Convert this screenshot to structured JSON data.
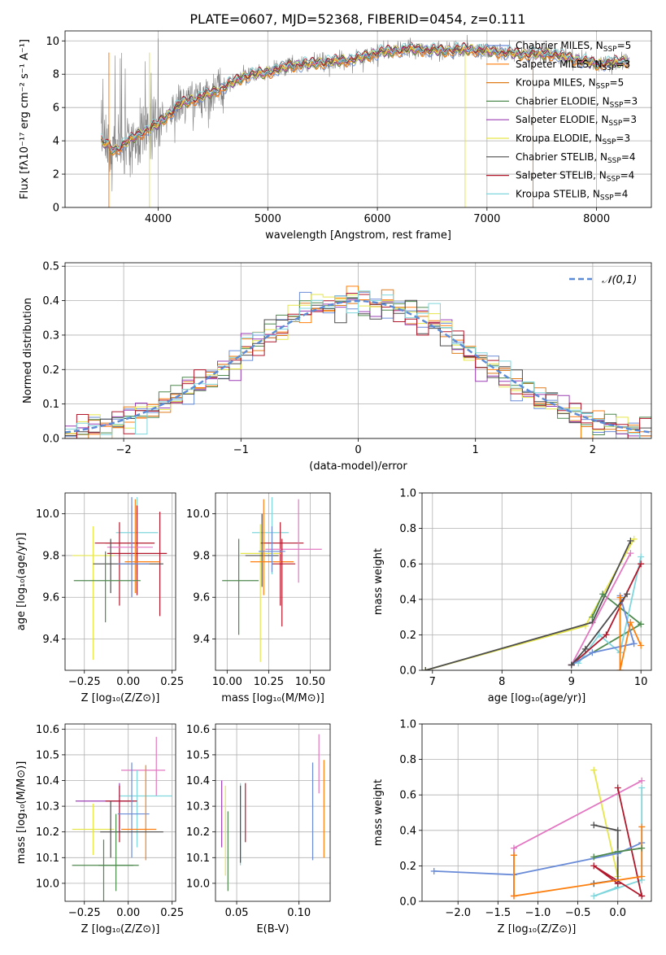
{
  "title": "PLATE=0607, MJD=52368, FIBERID=0454, z=0.111",
  "colors": {
    "chabrier_miles": "#6a8cd8",
    "salpeter_miles": "#ff7f0e",
    "kroupa_miles": "#e07b1a",
    "chabrier_elodie": "#4f8a4f",
    "salpeter_elodie": "#9b3fb5",
    "kroupa_elodie": "#e6e64a",
    "chabrier_stelib": "#4d4d4d",
    "salpeter_stelib": "#b2182b",
    "kroupa_stelib": "#7fd6dc",
    "pink": "#e377c2",
    "data": "#808080"
  },
  "chart_data": [
    {
      "id": "spectrum",
      "type": "line",
      "xlabel": "wavelength [Angstrom, rest frame]",
      "ylabel": "Flux [fλ10⁻¹⁷ erg cm⁻² s⁻¹ A⁻¹]",
      "xlim": [
        3150,
        8500
      ],
      "ylim": [
        0,
        10.6
      ],
      "xticks": [
        4000,
        5000,
        6000,
        7000,
        8000
      ],
      "yticks": [
        0,
        2,
        4,
        6,
        8,
        10
      ],
      "legend": [
        {
          "name": "Chabrier MILES, N",
          "sub": "SSP",
          "tail": "=5",
          "color": "#6a8cd8"
        },
        {
          "name": "Salpeter MILES, N",
          "sub": "SSP",
          "tail": "=3",
          "color": "#ff7f0e"
        },
        {
          "name": "Kroupa MILES, N",
          "sub": "SSP",
          "tail": "=5",
          "color": "#e07b1a"
        },
        {
          "name": "Chabrier ELODIE, N",
          "sub": "SSP",
          "tail": "=3",
          "color": "#4f8a4f"
        },
        {
          "name": "Salpeter ELODIE, N",
          "sub": "SSP",
          "tail": "=3",
          "color": "#9b3fb5"
        },
        {
          "name": "Kroupa ELODIE, N",
          "sub": "SSP",
          "tail": "=3",
          "color": "#e6e64a"
        },
        {
          "name": "Chabrier STELIB, N",
          "sub": "SSP",
          "tail": "=4",
          "color": "#4d4d4d"
        },
        {
          "name": "Salpeter STELIB, N",
          "sub": "SSP",
          "tail": "=4",
          "color": "#b2182b"
        },
        {
          "name": "Kroupa STELIB, N",
          "sub": "SSP",
          "tail": "=4",
          "color": "#7fd6dc"
        }
      ],
      "data_anchors": {
        "x": [
          3480,
          3600,
          3800,
          4000,
          4200,
          4500,
          4800,
          5000,
          5200,
          5500,
          5800,
          6000,
          6300,
          6600,
          6800,
          7000,
          7300,
          7600,
          8000,
          8300
        ],
        "y": [
          4.0,
          3.4,
          4.3,
          5.0,
          6.2,
          6.9,
          7.9,
          8.1,
          8.5,
          8.7,
          8.9,
          9.3,
          9.5,
          9.4,
          9.5,
          9.4,
          9.2,
          9.2,
          8.6,
          8.8
        ]
      }
    },
    {
      "id": "residuals",
      "type": "line",
      "xlabel": "(data-model)/error",
      "ylabel": "Normed distribution",
      "xlim": [
        -2.5,
        2.5
      ],
      "ylim": [
        0,
        0.51
      ],
      "xticks": [
        -2,
        -1,
        0,
        1,
        2
      ],
      "yticks": [
        0.0,
        0.1,
        0.2,
        0.3,
        0.4,
        0.5
      ],
      "legend": "𝒩(0,1)",
      "bin_width": 0.1
    },
    {
      "id": "age-vs-Z",
      "type": "scatter",
      "xlabel": "Z [log₁₀(Z/Z⊙)]",
      "ylabel": "age  [log₁₀(age/yr)]",
      "xlim": [
        -0.36,
        0.27
      ],
      "ylim": [
        9.25,
        10.1
      ],
      "xticks": [
        -0.25,
        0.0,
        0.25
      ],
      "yticks": [
        9.4,
        9.6,
        9.8,
        10.0
      ],
      "errorbars": [
        {
          "x": 0.05,
          "y": 9.91,
          "xerr": [
            0.12,
            0.12
          ],
          "yerr": [
            0.2,
            0.17
          ],
          "color": "#7fd6dc"
        },
        {
          "x": 0.05,
          "y": 9.86,
          "xerr": [
            0.18,
            0.1
          ],
          "yerr": [
            0.25,
            0.18
          ],
          "color": "#b2182b"
        },
        {
          "x": -0.05,
          "y": 9.86,
          "xerr": [
            0.14,
            0.2
          ],
          "yerr": [
            0.3,
            0.1
          ],
          "color": "#b2182b"
        },
        {
          "x": 0.02,
          "y": 9.84,
          "xerr": [
            0.14,
            0.12
          ],
          "yerr": [
            0.24,
            0.2
          ],
          "color": "#e377c2"
        },
        {
          "x": -0.2,
          "y": 9.8,
          "xerr": [
            0.12,
            0.12
          ],
          "yerr": [
            0.5,
            0.14
          ],
          "color": "#e6e64a"
        },
        {
          "x": 0.18,
          "y": 9.81,
          "xerr": [
            0.3,
            0.04
          ],
          "yerr": [
            0.3,
            0.2
          ],
          "color": "#b2182b"
        },
        {
          "x": 0.04,
          "y": 9.77,
          "xerr": [
            0.06,
            0.14
          ],
          "yerr": [
            0.15,
            0.3
          ],
          "color": "#ff7f0e"
        },
        {
          "x": -0.1,
          "y": 9.76,
          "xerr": [
            0.1,
            0.3
          ],
          "yerr": [
            0.14,
            0.12
          ],
          "color": "#4d4d4d"
        },
        {
          "x": -0.13,
          "y": 9.68,
          "xerr": [
            0.18,
            0.2
          ],
          "yerr": [
            0.2,
            0.14
          ],
          "color": "#4f8a4f"
        },
        {
          "x": 0.02,
          "y": 9.76,
          "xerr": [
            0.08,
            0.1
          ],
          "yerr": [
            0.16,
            0.32
          ],
          "color": "#6a8cd8"
        }
      ]
    },
    {
      "id": "age-vs-mass",
      "type": "scatter",
      "xlabel": "mass [log₁₀(M/M⊙)]",
      "ylabel": "",
      "xlim": [
        9.93,
        10.62
      ],
      "ylim": [
        9.25,
        10.1
      ],
      "xticks": [
        10.0,
        10.25,
        10.5
      ],
      "yticks": [
        9.4,
        9.6,
        9.8,
        10.0
      ],
      "errorbars": [
        {
          "x": 10.27,
          "y": 9.91,
          "xerr": [
            0.12,
            0.1
          ],
          "yerr": [
            0.2,
            0.17
          ],
          "color": "#7fd6dc"
        },
        {
          "x": 10.32,
          "y": 9.86,
          "xerr": [
            0.12,
            0.14
          ],
          "yerr": [
            0.3,
            0.1
          ],
          "color": "#b2182b"
        },
        {
          "x": 10.43,
          "y": 9.83,
          "xerr": [
            0.2,
            0.14
          ],
          "yerr": [
            0.16,
            0.24
          ],
          "color": "#e377c2"
        },
        {
          "x": 10.2,
          "y": 9.81,
          "xerr": [
            0.12,
            0.12
          ],
          "yerr": [
            0.52,
            0.14
          ],
          "color": "#e6e64a"
        },
        {
          "x": 10.21,
          "y": 9.8,
          "xerr": [
            0.1,
            0.1
          ],
          "yerr": [
            0.15,
            0.2
          ],
          "color": "#4d4d4d"
        },
        {
          "x": 10.22,
          "y": 9.77,
          "xerr": [
            0.08,
            0.18
          ],
          "yerr": [
            0.16,
            0.3
          ],
          "color": "#ff7f0e"
        },
        {
          "x": 10.33,
          "y": 9.76,
          "xerr": [
            0.06,
            0.08
          ],
          "yerr": [
            0.3,
            0.12
          ],
          "color": "#b2182b"
        },
        {
          "x": 10.07,
          "y": 9.68,
          "xerr": [
            0.1,
            0.12
          ],
          "yerr": [
            0.26,
            0.2
          ],
          "color": "#4f8a4f"
        },
        {
          "x": 10.27,
          "y": 9.82,
          "xerr": [
            0.08,
            0.08
          ],
          "yerr": [
            0.1,
            0.12
          ],
          "color": "#6a8cd8"
        }
      ]
    },
    {
      "id": "weight-vs-age",
      "type": "line",
      "xlabel": "age  [log₁₀(age/yr)]",
      "ylabel": "mass weight",
      "xlim": [
        6.85,
        10.15
      ],
      "ylim": [
        0,
        1.0
      ],
      "xticks": [
        7,
        8,
        9,
        10
      ],
      "yticks": [
        0.0,
        0.2,
        0.4,
        0.6,
        0.8,
        1.0
      ],
      "series": [
        {
          "color": "#e6e64a",
          "points": [
            [
              9.9,
              0.74
            ],
            [
              9.2,
              0.25
            ],
            [
              6.9,
              0.0
            ]
          ]
        },
        {
          "color": "#4d4d4d",
          "points": [
            [
              9.85,
              0.73
            ],
            [
              9.3,
              0.27
            ],
            [
              6.9,
              0.0
            ]
          ]
        },
        {
          "color": "#4f8a4f",
          "points": [
            [
              9.3,
              0.3
            ],
            [
              9.45,
              0.43
            ],
            [
              10.0,
              0.26
            ],
            [
              9.0,
              0.03
            ]
          ]
        },
        {
          "color": "#7fd6dc",
          "points": [
            [
              10.0,
              0.64
            ],
            [
              9.7,
              0.1
            ],
            [
              9.4,
              0.2
            ],
            [
              9.1,
              0.04
            ]
          ]
        },
        {
          "color": "#b2182b",
          "points": [
            [
              10.0,
              0.6
            ],
            [
              9.5,
              0.2
            ],
            [
              9.0,
              0.03
            ]
          ]
        },
        {
          "color": "#6a8cd8",
          "points": [
            [
              9.7,
              0.42
            ],
            [
              9.9,
              0.15
            ],
            [
              9.3,
              0.1
            ],
            [
              9.0,
              0.03
            ]
          ]
        },
        {
          "color": "#ff7f0e",
          "points": [
            [
              9.7,
              0.41
            ],
            [
              9.7,
              0.0
            ],
            [
              9.85,
              0.27
            ],
            [
              10.0,
              0.14
            ]
          ]
        },
        {
          "color": "#e377c2",
          "points": [
            [
              9.85,
              0.66
            ],
            [
              9.0,
              0.03
            ]
          ]
        },
        {
          "color": "#4d4d4d",
          "points": [
            [
              9.8,
              0.43
            ],
            [
              9.2,
              0.12
            ],
            [
              9.0,
              0.03
            ]
          ]
        }
      ]
    },
    {
      "id": "mass-vs-Z",
      "type": "scatter",
      "xlabel": "Z [log₁₀(Z/Z⊙)]",
      "ylabel": "mass [log₁₀(M/M⊙)]",
      "xlim": [
        -0.36,
        0.27
      ],
      "ylim": [
        9.93,
        10.62
      ],
      "xticks": [
        -0.25,
        0.0,
        0.25
      ],
      "yticks": [
        10.0,
        10.1,
        10.2,
        10.3,
        10.4,
        10.5,
        10.6
      ],
      "errorbars": [
        {
          "x": 0.16,
          "y": 10.44,
          "xerr": [
            0.2,
            0.05
          ],
          "yerr": [
            0.1,
            0.13
          ],
          "color": "#e377c2"
        },
        {
          "x": 0.05,
          "y": 10.34,
          "xerr": [
            0.1,
            0.2
          ],
          "yerr": [
            0.2,
            0.1
          ],
          "color": "#7fd6dc"
        },
        {
          "x": -0.05,
          "y": 10.32,
          "xerr": [
            0.25,
            0.08
          ],
          "yerr": [
            0.12,
            0.07
          ],
          "color": "#9b3fb5"
        },
        {
          "x": -0.05,
          "y": 10.32,
          "xerr": [
            0.08,
            0.1
          ],
          "yerr": [
            0.16,
            0.06
          ],
          "color": "#b2182b"
        },
        {
          "x": 0.02,
          "y": 10.27,
          "xerr": [
            0.08,
            0.1
          ],
          "yerr": [
            0.17,
            0.2
          ],
          "color": "#6a8cd8"
        },
        {
          "x": -0.2,
          "y": 10.21,
          "xerr": [
            0.12,
            0.12
          ],
          "yerr": [
            0.1,
            0.1
          ],
          "color": "#e6e64a"
        },
        {
          "x": 0.1,
          "y": 10.21,
          "xerr": [
            0.14,
            0.06
          ],
          "yerr": [
            0.12,
            0.25
          ],
          "color": "#ff7f0e"
        },
        {
          "x": -0.1,
          "y": 10.2,
          "xerr": [
            0.06,
            0.3
          ],
          "yerr": [
            0.1,
            0.12
          ],
          "color": "#4d4d4d"
        },
        {
          "x": -0.14,
          "y": 10.07,
          "xerr": [
            0.18,
            0.2
          ],
          "yerr": [
            0.15,
            0.1
          ],
          "color": "#4f8a4f"
        },
        {
          "x": -0.07,
          "y": 10.07,
          "xerr": [
            0.1,
            0.1
          ],
          "yerr": [
            0.1,
            0.2
          ],
          "color": "#4f8a4f"
        }
      ]
    },
    {
      "id": "mass-vs-ebv",
      "type": "scatter",
      "xlabel": "E(B-V)",
      "ylabel": "",
      "xlim": [
        0.033,
        0.125
      ],
      "ylim": [
        9.93,
        10.62
      ],
      "xticks": [
        0.05,
        0.1
      ],
      "yticks": [
        10.0,
        10.1,
        10.2,
        10.3,
        10.4,
        10.5,
        10.6
      ],
      "errorbars": [
        {
          "x": 0.116,
          "y": 10.45,
          "xerr": [
            0,
            0
          ],
          "yerr": [
            0.1,
            0.13
          ],
          "color": "#e377c2"
        },
        {
          "x": 0.053,
          "y": 10.27,
          "xerr": [
            0,
            0
          ],
          "yerr": [
            0.2,
            0.12
          ],
          "color": "#7fd6dc"
        },
        {
          "x": 0.038,
          "y": 10.27,
          "xerr": [
            0,
            0
          ],
          "yerr": [
            0.13,
            0.13
          ],
          "color": "#9b3fb5"
        },
        {
          "x": 0.057,
          "y": 10.24,
          "xerr": [
            0,
            0
          ],
          "yerr": [
            0.08,
            0.15
          ],
          "color": "#b2182b"
        },
        {
          "x": 0.111,
          "y": 10.28,
          "xerr": [
            0,
            0
          ],
          "yerr": [
            0.19,
            0.19
          ],
          "color": "#6a8cd8"
        },
        {
          "x": 0.041,
          "y": 10.26,
          "xerr": [
            0,
            0
          ],
          "yerr": [
            0.23,
            0.12
          ],
          "color": "#e6e64a"
        },
        {
          "x": 0.12,
          "y": 10.29,
          "xerr": [
            0,
            0
          ],
          "yerr": [
            0.19,
            0.19
          ],
          "color": "#ff7f0e"
        },
        {
          "x": 0.053,
          "y": 10.23,
          "xerr": [
            0,
            0
          ],
          "yerr": [
            0.15,
            0.15
          ],
          "color": "#4d4d4d"
        },
        {
          "x": 0.043,
          "y": 10.12,
          "xerr": [
            0,
            0
          ],
          "yerr": [
            0.15,
            0.16
          ],
          "color": "#4f8a4f"
        }
      ]
    },
    {
      "id": "weight-vs-Z",
      "type": "line",
      "xlabel": "Z [log₁₀(Z/Z⊙)]",
      "ylabel": "mass weight",
      "xlim": [
        -2.45,
        0.42
      ],
      "ylim": [
        0,
        1.0
      ],
      "xticks": [
        -2.0,
        -1.5,
        -1.0,
        -0.5,
        0.0
      ],
      "yticks": [
        0.0,
        0.2,
        0.4,
        0.6,
        0.8,
        1.0
      ],
      "series": [
        {
          "color": "#e6e64a",
          "points": [
            [
              -0.3,
              0.74
            ],
            [
              0.0,
              0.14
            ]
          ]
        },
        {
          "color": "#e377c2",
          "points": [
            [
              0.3,
              0.68
            ],
            [
              -1.3,
              0.3
            ],
            [
              -1.3,
              0.03
            ]
          ]
        },
        {
          "color": "#7fd6dc",
          "points": [
            [
              0.3,
              0.64
            ],
            [
              0.3,
              0.12
            ],
            [
              -0.3,
              0.03
            ],
            [
              0.0,
              0.08
            ]
          ]
        },
        {
          "color": "#b2182b",
          "points": [
            [
              0.0,
              0.64
            ],
            [
              0.3,
              0.03
            ],
            [
              -0.3,
              0.2
            ],
            [
              0.0,
              0.1
            ]
          ]
        },
        {
          "color": "#4d4d4d",
          "points": [
            [
              -0.3,
              0.43
            ],
            [
              0.0,
              0.4
            ],
            [
              0.0,
              0.12
            ],
            [
              -0.3,
              0.1
            ]
          ]
        },
        {
          "color": "#6a8cd8",
          "points": [
            [
              -2.3,
              0.17
            ],
            [
              -1.3,
              0.15
            ],
            [
              0.0,
              0.27
            ],
            [
              0.3,
              0.33
            ]
          ]
        },
        {
          "color": "#ff7f0e",
          "points": [
            [
              -1.3,
              0.26
            ],
            [
              -1.3,
              0.03
            ],
            [
              0.3,
              0.14
            ],
            [
              0.3,
              0.42
            ]
          ]
        },
        {
          "color": "#4f8a4f",
          "points": [
            [
              -0.3,
              0.25
            ],
            [
              0.0,
              0.28
            ],
            [
              0.3,
              0.3
            ]
          ]
        }
      ]
    }
  ]
}
